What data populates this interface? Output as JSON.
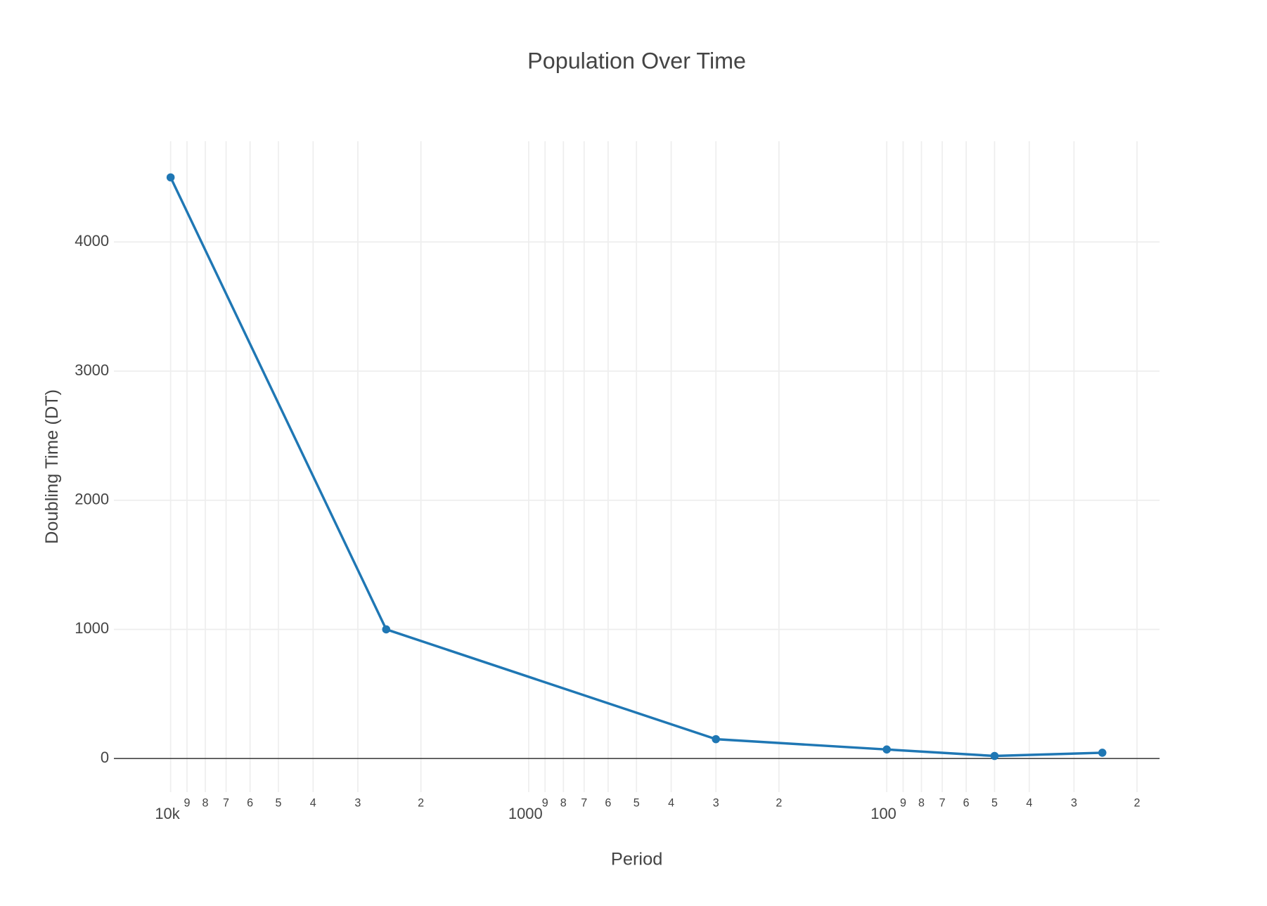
{
  "chart_data": {
    "type": "line",
    "title": "Population Over Time",
    "xlabel": "Period",
    "ylabel": "Doubling Time (DT)",
    "x": [
      10000,
      2500,
      300,
      100,
      50,
      25
    ],
    "series": [
      {
        "name": "Doubling Time",
        "color": "#1f77b4",
        "values": [
          4500,
          1000,
          150,
          70,
          20,
          45
        ]
      }
    ],
    "xlog": true,
    "xlim": [
      14400,
      17.3
    ],
    "xticks": [
      {
        "value": 10000,
        "label": "10k"
      },
      {
        "value": 9000,
        "label": "9"
      },
      {
        "value": 8000,
        "label": "8"
      },
      {
        "value": 7000,
        "label": "7"
      },
      {
        "value": 6000,
        "label": "6"
      },
      {
        "value": 5000,
        "label": "5"
      },
      {
        "value": 4000,
        "label": "4"
      },
      {
        "value": 3000,
        "label": "3"
      },
      {
        "value": 2000,
        "label": "2"
      },
      1000,
      {
        "value": 900,
        "label": "9"
      },
      {
        "value": 800,
        "label": "8"
      },
      {
        "value": 700,
        "label": "7"
      },
      {
        "value": 600,
        "label": "6"
      },
      {
        "value": 500,
        "label": "5"
      },
      {
        "value": 400,
        "label": "4"
      },
      {
        "value": 300,
        "label": "3"
      },
      {
        "value": 200,
        "label": "2"
      },
      100,
      {
        "value": 90,
        "label": "9"
      },
      {
        "value": 80,
        "label": "8"
      },
      {
        "value": 70,
        "label": "7"
      },
      {
        "value": 60,
        "label": "6"
      },
      {
        "value": 50,
        "label": "5"
      },
      {
        "value": 40,
        "label": "4"
      },
      {
        "value": 30,
        "label": "3"
      },
      {
        "value": 20,
        "label": "2"
      }
    ],
    "ylim": [
      -260,
      4780
    ],
    "yticks": [
      0,
      1000,
      2000,
      3000,
      4000
    ],
    "grid": true
  }
}
